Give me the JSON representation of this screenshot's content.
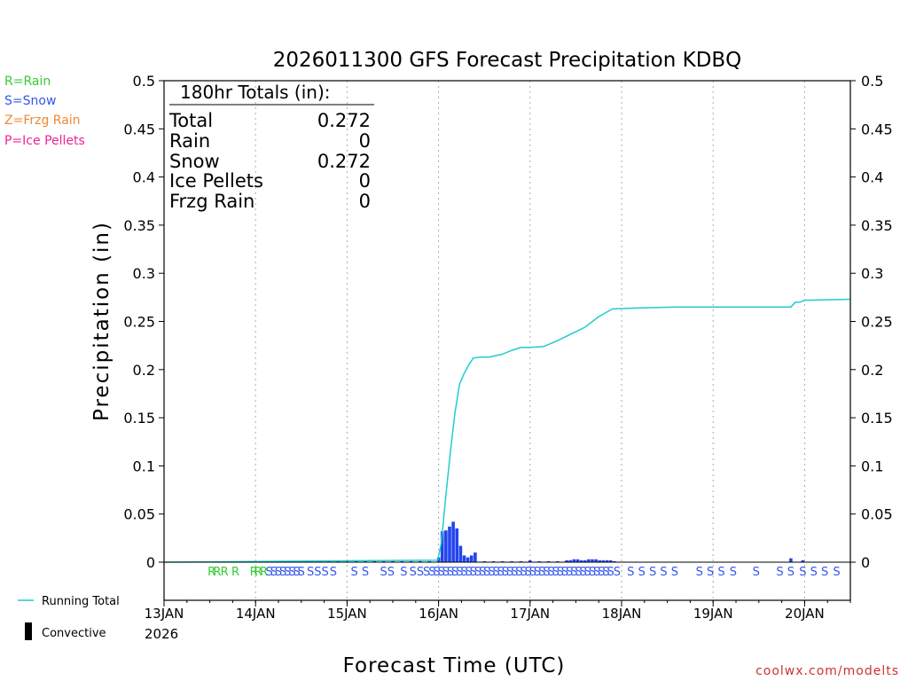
{
  "chart_data": {
    "type": "bar",
    "title": "2026011300 GFS Forecast Precipitation KDBQ",
    "xlabel": "Forecast Time (UTC)",
    "ylabel": "Precipitation (in)",
    "ylim": [
      0,
      0.5
    ],
    "xlim_days": [
      13,
      20.5
    ],
    "yticks": [
      "0",
      "0.05",
      "0.1",
      "0.15",
      "0.2",
      "0.25",
      "0.3",
      "0.35",
      "0.4",
      "0.45",
      "0.5"
    ],
    "xticks": [
      {
        "day": 13,
        "label": "13JAN"
      },
      {
        "day": 14,
        "label": "14JAN"
      },
      {
        "day": 15,
        "label": "15JAN"
      },
      {
        "day": 16,
        "label": "16JAN"
      },
      {
        "day": 17,
        "label": "17JAN"
      },
      {
        "day": 18,
        "label": "18JAN"
      },
      {
        "day": 19,
        "label": "19JAN"
      },
      {
        "day": 20,
        "label": "20JAN"
      }
    ],
    "year_label": "2026",
    "grid": true,
    "legend_types": [
      {
        "label": "R=Rain",
        "color": "#33cc33"
      },
      {
        "label": "S=Snow",
        "color": "#3355ee"
      },
      {
        "label": "Z=Frzg Rain",
        "color": "#ee8833"
      },
      {
        "label": "P=Ice Pellets",
        "color": "#ee2299"
      }
    ],
    "legend_lines": [
      {
        "label": "Running Total",
        "color": "#22cccc"
      },
      {
        "label": "Convective",
        "color": "#000000"
      }
    ],
    "totals": {
      "heading": "180hr Totals (in):",
      "rows": [
        {
          "label": "Total",
          "value": "0.272"
        },
        {
          "label": "Rain",
          "value": "0"
        },
        {
          "label": "Snow",
          "value": "0.272"
        },
        {
          "label": "Ice Pellets",
          "value": "0"
        },
        {
          "label": "Frzg Rain",
          "value": "0"
        }
      ]
    },
    "snow_color": "#2244ee",
    "running_total_color": "#22cccc",
    "series": [
      {
        "name": "Snow",
        "x_days": [
          14.4,
          14.5,
          14.6,
          14.7,
          14.8,
          14.9,
          15.0,
          15.1,
          15.2,
          15.3,
          15.4,
          15.5,
          15.6,
          15.7,
          15.8,
          15.9,
          16.0,
          16.04,
          16.08,
          16.12,
          16.16,
          16.2,
          16.24,
          16.28,
          16.32,
          16.36,
          16.4,
          16.5,
          16.6,
          16.7,
          16.8,
          16.9,
          17.0,
          17.1,
          17.2,
          17.3,
          17.4,
          17.44,
          17.48,
          17.52,
          17.56,
          17.6,
          17.64,
          17.68,
          17.72,
          17.76,
          17.8,
          17.84,
          17.88,
          17.92,
          19.85,
          19.98
        ],
        "values": [
          0.001,
          0.001,
          0.001,
          0.001,
          0.001,
          0.001,
          0.001,
          0.001,
          0.001,
          0.001,
          0.001,
          0.001,
          0.001,
          0.001,
          0.001,
          0.001,
          0.005,
          0.032,
          0.033,
          0.037,
          0.042,
          0.035,
          0.017,
          0.007,
          0.005,
          0.007,
          0.01,
          0.001,
          0.001,
          0.001,
          0.001,
          0.001,
          0.002,
          0.001,
          0.001,
          0.001,
          0.002,
          0.002,
          0.003,
          0.003,
          0.002,
          0.002,
          0.003,
          0.003,
          0.003,
          0.002,
          0.002,
          0.002,
          0.002,
          0.001,
          0.004,
          0.002
        ]
      },
      {
        "name": "Running Total",
        "x_days": [
          13.0,
          14.4,
          15.99,
          16.03,
          16.08,
          16.13,
          16.18,
          16.23,
          16.28,
          16.33,
          16.38,
          16.45,
          16.55,
          16.7,
          16.8,
          16.9,
          17.0,
          17.15,
          17.3,
          17.45,
          17.6,
          17.75,
          17.9,
          18.2,
          18.6,
          19.85,
          19.9,
          19.95,
          20.0,
          20.5
        ],
        "values": [
          0.0,
          0.001,
          0.002,
          0.02,
          0.07,
          0.115,
          0.156,
          0.185,
          0.196,
          0.205,
          0.212,
          0.213,
          0.213,
          0.216,
          0.22,
          0.223,
          0.223,
          0.224,
          0.23,
          0.237,
          0.244,
          0.255,
          0.263,
          0.264,
          0.265,
          0.265,
          0.27,
          0.27,
          0.272,
          0.273
        ]
      }
    ],
    "ptype_markers": [
      {
        "day": 13.52,
        "code": "R"
      },
      {
        "day": 13.58,
        "code": "R"
      },
      {
        "day": 13.66,
        "code": "R"
      },
      {
        "day": 13.78,
        "code": "R"
      },
      {
        "day": 13.98,
        "code": "R"
      },
      {
        "day": 14.03,
        "code": "R"
      },
      {
        "day": 14.09,
        "code": "R"
      },
      {
        "day": 14.15,
        "code": "S"
      },
      {
        "day": 14.2,
        "code": "S"
      },
      {
        "day": 14.25,
        "code": "S"
      },
      {
        "day": 14.3,
        "code": "S"
      },
      {
        "day": 14.35,
        "code": "S"
      },
      {
        "day": 14.4,
        "code": "S"
      },
      {
        "day": 14.45,
        "code": "S"
      },
      {
        "day": 14.5,
        "code": "S"
      },
      {
        "day": 14.6,
        "code": "S"
      },
      {
        "day": 14.68,
        "code": "S"
      },
      {
        "day": 14.76,
        "code": "S"
      },
      {
        "day": 14.85,
        "code": "S"
      },
      {
        "day": 15.08,
        "code": "S"
      },
      {
        "day": 15.2,
        "code": "S"
      },
      {
        "day": 15.4,
        "code": "S"
      },
      {
        "day": 15.48,
        "code": "S"
      },
      {
        "day": 15.62,
        "code": "S"
      },
      {
        "day": 15.72,
        "code": "S"
      },
      {
        "day": 15.8,
        "code": "S"
      },
      {
        "day": 15.87,
        "code": "S"
      },
      {
        "day": 15.93,
        "code": "S"
      },
      {
        "day": 15.98,
        "code": "S"
      },
      {
        "day": 16.03,
        "code": "S"
      },
      {
        "day": 16.08,
        "code": "S"
      },
      {
        "day": 16.13,
        "code": "S"
      },
      {
        "day": 16.18,
        "code": "S"
      },
      {
        "day": 16.23,
        "code": "S"
      },
      {
        "day": 16.28,
        "code": "S"
      },
      {
        "day": 16.33,
        "code": "S"
      },
      {
        "day": 16.38,
        "code": "S"
      },
      {
        "day": 16.43,
        "code": "S"
      },
      {
        "day": 16.48,
        "code": "S"
      },
      {
        "day": 16.53,
        "code": "S"
      },
      {
        "day": 16.58,
        "code": "S"
      },
      {
        "day": 16.63,
        "code": "S"
      },
      {
        "day": 16.68,
        "code": "S"
      },
      {
        "day": 16.73,
        "code": "S"
      },
      {
        "day": 16.78,
        "code": "S"
      },
      {
        "day": 16.83,
        "code": "S"
      },
      {
        "day": 16.88,
        "code": "S"
      },
      {
        "day": 16.93,
        "code": "S"
      },
      {
        "day": 16.98,
        "code": "S"
      },
      {
        "day": 17.03,
        "code": "S"
      },
      {
        "day": 17.08,
        "code": "S"
      },
      {
        "day": 17.13,
        "code": "S"
      },
      {
        "day": 17.18,
        "code": "S"
      },
      {
        "day": 17.23,
        "code": "S"
      },
      {
        "day": 17.28,
        "code": "S"
      },
      {
        "day": 17.33,
        "code": "S"
      },
      {
        "day": 17.38,
        "code": "S"
      },
      {
        "day": 17.43,
        "code": "S"
      },
      {
        "day": 17.48,
        "code": "S"
      },
      {
        "day": 17.53,
        "code": "S"
      },
      {
        "day": 17.58,
        "code": "S"
      },
      {
        "day": 17.63,
        "code": "S"
      },
      {
        "day": 17.68,
        "code": "S"
      },
      {
        "day": 17.73,
        "code": "S"
      },
      {
        "day": 17.78,
        "code": "S"
      },
      {
        "day": 17.83,
        "code": "S"
      },
      {
        "day": 17.88,
        "code": "S"
      },
      {
        "day": 17.95,
        "code": "S"
      },
      {
        "day": 18.1,
        "code": "S"
      },
      {
        "day": 18.22,
        "code": "S"
      },
      {
        "day": 18.34,
        "code": "S"
      },
      {
        "day": 18.46,
        "code": "S"
      },
      {
        "day": 18.58,
        "code": "S"
      },
      {
        "day": 18.85,
        "code": "S"
      },
      {
        "day": 18.97,
        "code": "S"
      },
      {
        "day": 19.09,
        "code": "S"
      },
      {
        "day": 19.22,
        "code": "S"
      },
      {
        "day": 19.47,
        "code": "S"
      },
      {
        "day": 19.73,
        "code": "S"
      },
      {
        "day": 19.85,
        "code": "S"
      },
      {
        "day": 19.98,
        "code": "S"
      },
      {
        "day": 20.1,
        "code": "S"
      },
      {
        "day": 20.22,
        "code": "S"
      },
      {
        "day": 20.35,
        "code": "S"
      }
    ],
    "credit": "coolwx.com/modelts"
  }
}
